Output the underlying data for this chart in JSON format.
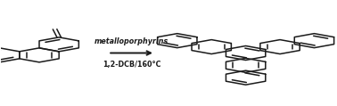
{
  "background_color": "#ffffff",
  "arrow_text_top": "metalloporphyrins",
  "arrow_text_bottom": "1,2-DCB/160°C",
  "line_color": "#1a1a1a",
  "text_color": "#1a1a1a",
  "line_width": 1.1,
  "figsize": [
    3.78,
    1.19
  ],
  "dpi": 100
}
